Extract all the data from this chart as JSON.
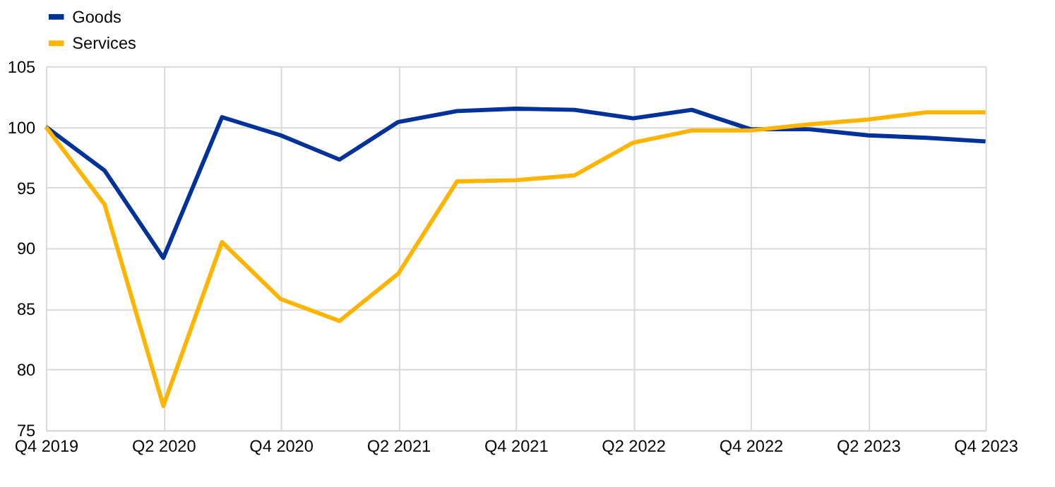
{
  "chart_data": {
    "type": "line",
    "categories": [
      "Q4 2019",
      null,
      "Q2 2020",
      null,
      "Q4 2020",
      null,
      "Q2 2021",
      null,
      "Q4 2021",
      null,
      "Q2 2022",
      null,
      "Q4 2022",
      null,
      "Q2 2023",
      null,
      "Q4 2023"
    ],
    "series": [
      {
        "name": "Goods",
        "color": "#003299",
        "values": [
          100,
          96.4,
          89.2,
          100.8,
          99.3,
          97.3,
          100.4,
          101.3,
          101.5,
          101.4,
          100.7,
          101.4,
          99.8,
          99.8,
          99.3,
          99.1,
          98.8
        ]
      },
      {
        "name": "Services",
        "color": "#ffb400",
        "values": [
          100,
          93.6,
          77.0,
          90.5,
          85.8,
          84.0,
          87.9,
          95.5,
          95.6,
          96.0,
          98.7,
          99.7,
          99.7,
          100.2,
          100.6,
          101.2,
          101.2
        ]
      }
    ],
    "ylim": [
      75,
      105
    ],
    "yticks": [
      75,
      80,
      85,
      90,
      95,
      100,
      105
    ],
    "grid": true,
    "legend": "top left",
    "marker": "none",
    "line_style": "solid"
  }
}
